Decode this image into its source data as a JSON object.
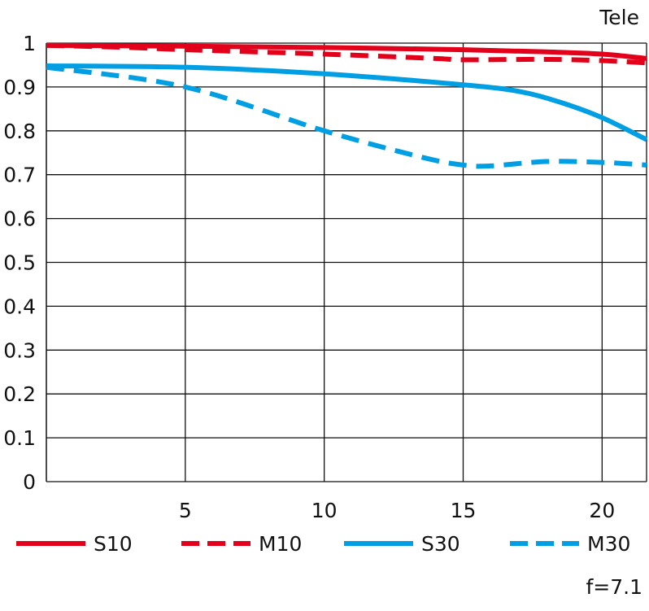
{
  "chart_data": {
    "type": "line",
    "title": "Tele",
    "footnote": "f=7.1",
    "xlim": [
      0,
      21.6
    ],
    "ylim": [
      0,
      1
    ],
    "xticks": [
      5,
      10,
      15,
      20
    ],
    "yticks": [
      0,
      0.1,
      0.2,
      0.3,
      0.4,
      0.5,
      0.6,
      0.7,
      0.8,
      0.9,
      1
    ],
    "ytick_labels": [
      "0",
      "0.1",
      "0.2",
      "0.3",
      "0.4",
      "0.5",
      "0.6",
      "0.7",
      "0.8",
      "0.9",
      "1"
    ],
    "xtick_labels": [
      "5",
      "10",
      "15",
      "20"
    ],
    "grid": true,
    "legend": "bottom",
    "series": [
      {
        "name": "S10",
        "color": "#e2001a",
        "dash": false,
        "x": [
          0,
          5,
          10,
          15,
          18,
          20,
          21.6
        ],
        "y": [
          0.995,
          0.993,
          0.99,
          0.985,
          0.98,
          0.975,
          0.965
        ]
      },
      {
        "name": "M10",
        "color": "#e2001a",
        "dash": true,
        "x": [
          0,
          3,
          5,
          10,
          14,
          15,
          18,
          20,
          21.6
        ],
        "y": [
          0.995,
          0.99,
          0.985,
          0.975,
          0.965,
          0.962,
          0.963,
          0.96,
          0.955
        ]
      },
      {
        "name": "S30",
        "color": "#009fe3",
        "dash": false,
        "x": [
          0,
          5,
          10,
          15,
          17,
          18.5,
          20,
          21.6
        ],
        "y": [
          0.948,
          0.945,
          0.93,
          0.905,
          0.89,
          0.865,
          0.83,
          0.78
        ]
      },
      {
        "name": "M30",
        "color": "#009fe3",
        "dash": true,
        "x": [
          0,
          5,
          10,
          13.5,
          15,
          16,
          18,
          20,
          21.6
        ],
        "y": [
          0.945,
          0.9,
          0.8,
          0.74,
          0.722,
          0.72,
          0.73,
          0.728,
          0.722
        ]
      }
    ]
  }
}
